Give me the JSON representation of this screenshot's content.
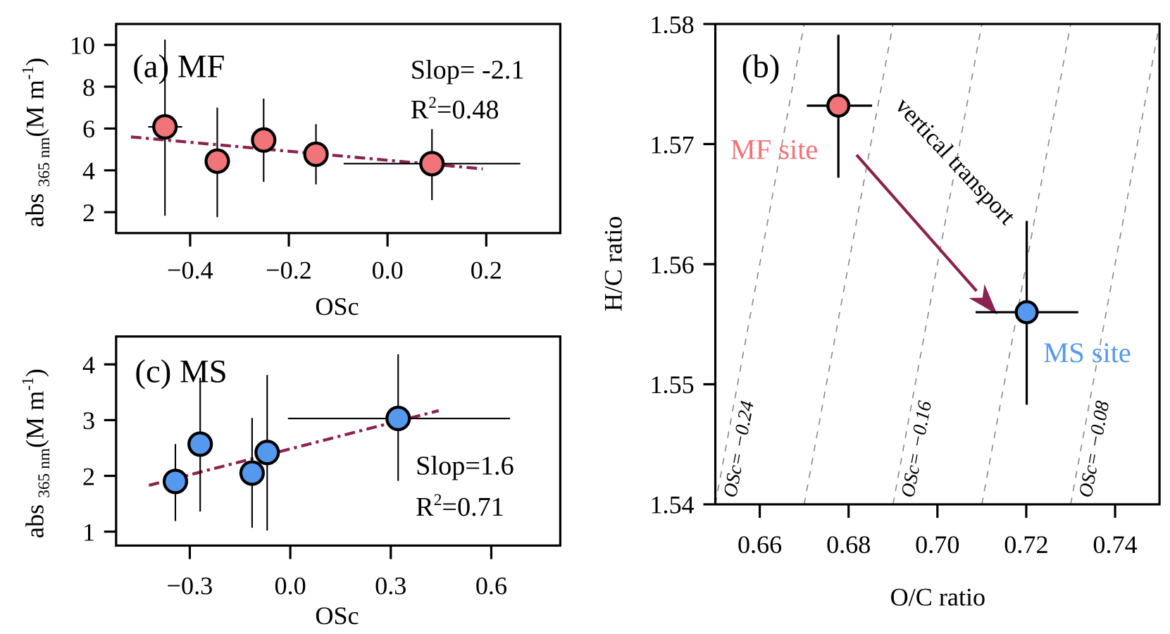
{
  "chart_data": [
    {
      "id": "a",
      "type": "scatter",
      "panel_label": "(a) MF",
      "xlabel": "OSc",
      "ylabel": {
        "main": "abs",
        "sub": "365 nm",
        "unit": "(M m",
        "sup": "-1",
        "close": ")"
      },
      "xlim": [
        -0.55,
        0.35
      ],
      "ylim": [
        1,
        11
      ],
      "xticks": [
        -0.4,
        -0.2,
        0.0,
        0.2
      ],
      "xtick_labels": [
        "−0.4",
        "−0.2",
        "0.0",
        "0.2"
      ],
      "yticks": [
        2,
        4,
        6,
        8,
        10
      ],
      "ytick_labels": [
        "2",
        "4",
        "6",
        "8",
        "10"
      ],
      "point_color": "#F07478",
      "fit_color": "#8B2250",
      "points": [
        {
          "x": -0.451,
          "y": 6.08,
          "ylo": 1.83,
          "yhi": 10.25,
          "xlo": -0.485,
          "xhi": -0.416
        },
        {
          "x": -0.345,
          "y": 4.44,
          "ylo": 1.76,
          "yhi": 7.0
        },
        {
          "x": -0.251,
          "y": 5.45,
          "ylo": 3.45,
          "yhi": 7.43
        },
        {
          "x": -0.145,
          "y": 4.77,
          "ylo": 3.33,
          "yhi": 6.21
        },
        {
          "x": 0.09,
          "y": 4.32,
          "ylo": 2.58,
          "yhi": 5.97,
          "xlo": -0.089,
          "xhi": 0.269
        }
      ],
      "fit": {
        "x": [
          -0.52,
          0.193
        ],
        "y": [
          5.6,
          4.07
        ]
      },
      "slope_text": "Slop= -2.1",
      "r2": {
        "r": "R",
        "sup": "2",
        "value": "=0.48"
      }
    },
    {
      "id": "c",
      "type": "scatter",
      "panel_label": "(c) MS",
      "xlabel": "OSc",
      "ylabel": {
        "main": "abs",
        "sub": "365 nm",
        "unit": "(M m",
        "sup": "-1",
        "close": ")"
      },
      "xlim": [
        -0.52,
        0.806
      ],
      "ylim": [
        0.75,
        4.5
      ],
      "xticks": [
        -0.3,
        0.0,
        0.3,
        0.6
      ],
      "xtick_labels": [
        "−0.3",
        "0.0",
        "0.3",
        "0.6"
      ],
      "yticks": [
        1,
        2,
        3,
        4
      ],
      "ytick_labels": [
        "1",
        "2",
        "3",
        "4"
      ],
      "point_color": "#5599EE",
      "fit_color": "#8B2250",
      "points": [
        {
          "x": -0.343,
          "y": 1.9,
          "ylo": 1.19,
          "yhi": 2.57
        },
        {
          "x": -0.269,
          "y": 2.57,
          "ylo": 1.36,
          "yhi": 3.76
        },
        {
          "x": -0.114,
          "y": 2.05,
          "ylo": 1.07,
          "yhi": 3.04
        },
        {
          "x": -0.069,
          "y": 2.42,
          "ylo": 1.02,
          "yhi": 3.81
        },
        {
          "x": 0.322,
          "y": 3.03,
          "ylo": 1.91,
          "yhi": 4.18,
          "xlo": -0.007,
          "xhi": 0.656
        }
      ],
      "fit": {
        "x": [
          -0.422,
          0.443
        ],
        "y": [
          1.83,
          3.17
        ]
      },
      "slope_text": "Slop=1.6",
      "r2": {
        "r": "R",
        "sup": "2",
        "value": "=0.71"
      }
    },
    {
      "id": "b",
      "type": "scatter",
      "panel_label": "(b)",
      "xlabel": "O/C ratio",
      "ylabel": "H/C ratio",
      "xlim": [
        0.65,
        0.75
      ],
      "ylim": [
        1.54,
        1.58
      ],
      "xticks": [
        0.66,
        0.68,
        0.7,
        0.72,
        0.74
      ],
      "xtick_labels": [
        "0.66",
        "0.68",
        "0.70",
        "0.72",
        "0.74"
      ],
      "yticks": [
        1.54,
        1.55,
        1.56,
        1.57,
        1.58
      ],
      "ytick_labels": [
        "1.54",
        "1.55",
        "1.56",
        "1.57",
        "1.58"
      ],
      "points": [
        {
          "name": "MF site",
          "color": "#F07478",
          "x": 0.6777,
          "y": 1.5732,
          "xlo": 0.6706,
          "xhi": 0.6853,
          "ylo": 1.5672,
          "yhi": 1.5791
        },
        {
          "name": "MS site",
          "color": "#5599EE",
          "x": 0.7201,
          "y": 1.556,
          "xlo": 0.7086,
          "xhi": 0.7317,
          "ylo": 1.5483,
          "yhi": 1.5636
        }
      ],
      "iso_osc": [
        -0.24,
        -0.2,
        -0.16,
        -0.12,
        -0.08
      ],
      "iso_labels": [
        {
          "osc": -0.24,
          "text": "OSc= −0.24"
        },
        {
          "osc": -0.16,
          "text": "OSc= −0.16"
        },
        {
          "osc": -0.08,
          "text": "OSc= −0.08"
        }
      ],
      "arrow": {
        "from": [
          0.6818,
          1.5691
        ],
        "to": [
          0.7135,
          1.5558
        ],
        "color": "#8B2250",
        "label": "vertical transport"
      }
    }
  ]
}
